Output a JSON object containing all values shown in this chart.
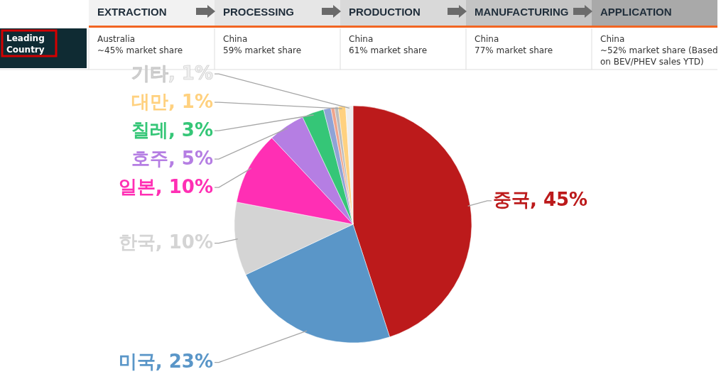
{
  "chart_data": [
    {
      "type": "other",
      "categories": [
        "EXTRACTION",
        "PROCESSING",
        "PRODUCTION",
        "MANUFACTURING",
        "APPLICATION"
      ],
      "ylabel": "Leading Country",
      "annotations": [
        "Australia\n~45% market share",
        "China\n59% market share",
        "China\n61% market share",
        "China\n77% market share",
        "China\n~52% market share (Based\non BEV/PHEV sales YTD)"
      ]
    },
    {
      "type": "pie",
      "categories": [
        "중국",
        "미국",
        "한국",
        "일본",
        "호주",
        "칠레",
        null,
        null,
        null,
        "대만",
        "기타"
      ],
      "values": [
        45,
        23,
        10,
        10,
        5,
        3,
        1.0,
        0.5,
        0.5,
        1,
        1
      ],
      "colors": [
        "#bc1a1b",
        "#5a96c8",
        "#d4d4d4",
        "#ff2fb4",
        "#b57ee3",
        "#35c677",
        "#8fa3d6",
        "#f0a58c",
        "#bdbdbd",
        "#ffd17f",
        "#efefef"
      ],
      "value_labels": [
        "45%",
        "23%",
        "10%",
        "10%",
        "5%",
        "3%",
        null,
        null,
        null,
        "1%",
        "1%"
      ]
    }
  ]
}
